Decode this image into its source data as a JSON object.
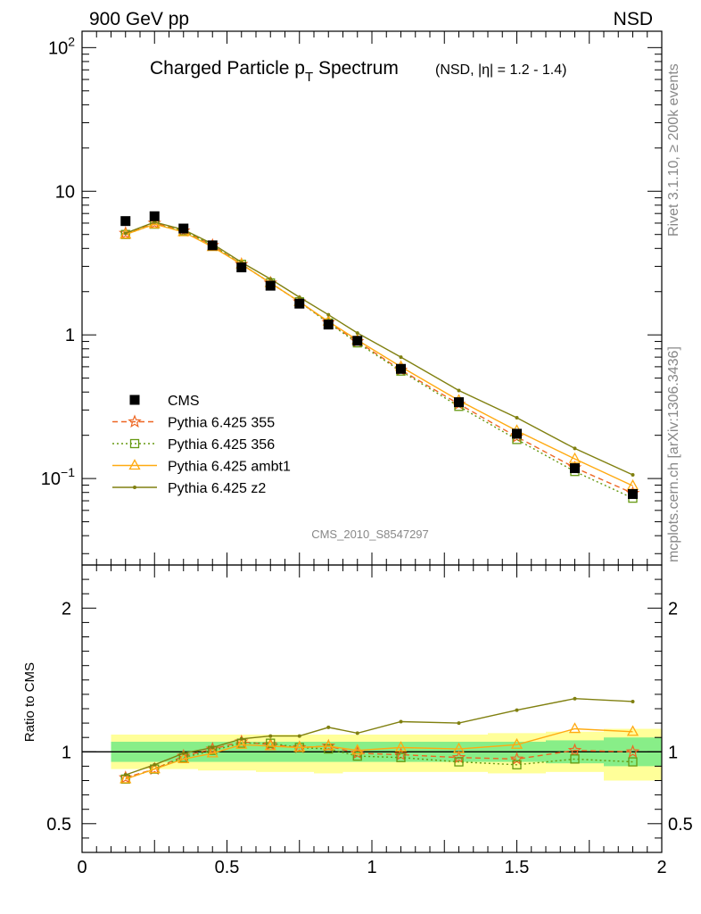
{
  "header": {
    "left": "900 GeV pp",
    "right": "NSD",
    "side_top": "Rivet 3.1.10, ≥ 200k events",
    "side_bottom": "mcplots.cern.ch [arXiv:1306.3436]"
  },
  "chart_data": [
    {
      "type": "line",
      "title_main": "Charged Particle p",
      "title_sub": "T",
      "title_main2": " Spectrum",
      "title_extra": "(NSD, |η| = 1.2 - 1.4)",
      "watermark": "CMS_2010_S8547297",
      "yscale": "log",
      "xlim": [
        0,
        2
      ],
      "ylim": [
        0.025,
        130
      ],
      "ytick_labels": [
        {
          "v": 100,
          "base": "10",
          "exp": "2"
        },
        {
          "v": 10,
          "base": "10",
          "exp": ""
        },
        {
          "v": 1,
          "base": "1",
          "exp": ""
        },
        {
          "v": 0.1,
          "base": "10",
          "exp": "−1"
        }
      ],
      "x": [
        0.15,
        0.25,
        0.35,
        0.45,
        0.55,
        0.65,
        0.75,
        0.85,
        0.95,
        1.1,
        1.3,
        1.5,
        1.7,
        1.9
      ],
      "series": [
        {
          "name": "CMS",
          "color": "#000000",
          "marker": "square",
          "values": [
            6.2,
            6.7,
            5.5,
            4.2,
            2.95,
            2.2,
            1.65,
            1.18,
            0.91,
            0.58,
            0.34,
            0.205,
            0.118,
            0.078
          ]
        },
        {
          "name": "Pythia 6.425 355",
          "color": "#ee6622",
          "marker": "star",
          "dash": "6,4",
          "values": [
            5.1,
            6.0,
            5.3,
            4.2,
            3.1,
            2.3,
            1.7,
            1.22,
            0.9,
            0.57,
            0.33,
            0.195,
            0.119,
            0.079
          ]
        },
        {
          "name": "Pythia 6.425 356",
          "color": "#669911",
          "marker": "opensquare",
          "dash": "2,3",
          "values": [
            5.0,
            5.9,
            5.3,
            4.2,
            3.1,
            2.3,
            1.7,
            1.21,
            0.88,
            0.56,
            0.318,
            0.187,
            0.112,
            0.073
          ]
        },
        {
          "name": "Pythia 6.425 ambt1",
          "color": "#ffaa11",
          "marker": "triangle",
          "values": [
            5.0,
            5.9,
            5.2,
            4.1,
            3.1,
            2.3,
            1.7,
            1.24,
            0.92,
            0.6,
            0.35,
            0.215,
            0.137,
            0.089
          ]
        },
        {
          "name": "Pythia 6.425 z2",
          "color": "#808010",
          "marker": "dot",
          "values": [
            5.1,
            6.1,
            5.4,
            4.3,
            3.2,
            2.45,
            1.83,
            1.38,
            1.03,
            0.7,
            0.41,
            0.265,
            0.162,
            0.106
          ]
        }
      ]
    },
    {
      "type": "line",
      "ylabel": "Ratio to CMS",
      "xlim": [
        0,
        2
      ],
      "ylim": [
        0.3,
        2.3
      ],
      "xticks": [
        "0",
        "0.5",
        "1",
        "1.5",
        "2"
      ],
      "yticks": [
        "0.5",
        "1",
        "2"
      ],
      "bands": [
        {
          "x": [
            0.1,
            0.2
          ],
          "inner": [
            0.93,
            1.07
          ],
          "outer": [
            0.88,
            1.12
          ]
        },
        {
          "x": [
            0.2,
            0.3
          ],
          "inner": [
            0.93,
            1.07
          ],
          "outer": [
            0.88,
            1.12
          ]
        },
        {
          "x": [
            0.3,
            0.4
          ],
          "inner": [
            0.93,
            1.07
          ],
          "outer": [
            0.88,
            1.12
          ]
        },
        {
          "x": [
            0.4,
            0.5
          ],
          "inner": [
            0.93,
            1.07
          ],
          "outer": [
            0.87,
            1.12
          ]
        },
        {
          "x": [
            0.5,
            0.6
          ],
          "inner": [
            0.93,
            1.07
          ],
          "outer": [
            0.87,
            1.12
          ]
        },
        {
          "x": [
            0.6,
            0.7
          ],
          "inner": [
            0.93,
            1.07
          ],
          "outer": [
            0.86,
            1.12
          ]
        },
        {
          "x": [
            0.7,
            0.8
          ],
          "inner": [
            0.93,
            1.07
          ],
          "outer": [
            0.86,
            1.12
          ]
        },
        {
          "x": [
            0.8,
            0.9
          ],
          "inner": [
            0.93,
            1.07
          ],
          "outer": [
            0.85,
            1.12
          ]
        },
        {
          "x": [
            0.9,
            1.0
          ],
          "inner": [
            0.93,
            1.07
          ],
          "outer": [
            0.86,
            1.12
          ]
        },
        {
          "x": [
            1.0,
            1.2
          ],
          "inner": [
            0.93,
            1.07
          ],
          "outer": [
            0.86,
            1.12
          ]
        },
        {
          "x": [
            1.2,
            1.4
          ],
          "inner": [
            0.93,
            1.07
          ],
          "outer": [
            0.86,
            1.12
          ]
        },
        {
          "x": [
            1.4,
            1.6
          ],
          "inner": [
            0.93,
            1.07
          ],
          "outer": [
            0.85,
            1.13
          ]
        },
        {
          "x": [
            1.6,
            1.8
          ],
          "inner": [
            0.92,
            1.08
          ],
          "outer": [
            0.86,
            1.14
          ]
        },
        {
          "x": [
            1.8,
            2.0
          ],
          "inner": [
            0.9,
            1.1
          ],
          "outer": [
            0.8,
            1.16
          ]
        }
      ],
      "x": [
        0.15,
        0.25,
        0.35,
        0.45,
        0.55,
        0.65,
        0.75,
        0.85,
        0.95,
        1.1,
        1.3,
        1.5,
        1.7,
        1.9
      ],
      "series": [
        {
          "name": "Pythia 6.425 355",
          "color": "#ee6622",
          "marker": "star",
          "dash": "6,4",
          "values": [
            0.82,
            0.88,
            0.97,
            1.02,
            1.07,
            1.05,
            1.03,
            1.04,
            0.99,
            0.98,
            0.96,
            0.95,
            1.01,
            1.0
          ]
        },
        {
          "name": "Pythia 6.425 356",
          "color": "#669911",
          "marker": "opensquare",
          "dash": "2,3",
          "values": [
            0.81,
            0.88,
            0.96,
            1.01,
            1.06,
            1.06,
            1.03,
            1.02,
            0.97,
            0.96,
            0.93,
            0.91,
            0.95,
            0.93
          ]
        },
        {
          "name": "Pythia 6.425 ambt1",
          "color": "#ffaa11",
          "marker": "triangle",
          "values": [
            0.81,
            0.88,
            0.95,
            0.99,
            1.05,
            1.04,
            1.03,
            1.04,
            1.01,
            1.03,
            1.02,
            1.05,
            1.16,
            1.14
          ]
        },
        {
          "name": "Pythia 6.425 z2",
          "color": "#808010",
          "marker": "dot",
          "values": [
            0.84,
            0.91,
            0.99,
            1.03,
            1.09,
            1.11,
            1.11,
            1.17,
            1.13,
            1.21,
            1.2,
            1.29,
            1.37,
            1.35
          ]
        }
      ]
    }
  ]
}
